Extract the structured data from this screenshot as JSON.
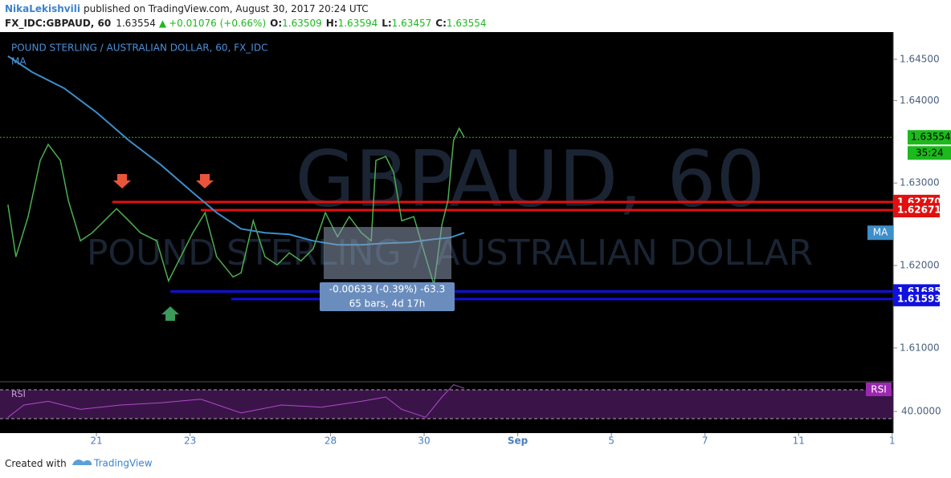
{
  "header": {
    "author": "NikaLekishvili",
    "published": "published on TradingView.com, August 30, 2017 20:24 UTC",
    "symbol": "FX_IDC:GBPAUD, 60",
    "last": "1.63554",
    "change": "+0.01076 (+0.66%)",
    "quote": [
      {
        "key": "O:",
        "value": "1.63509"
      },
      {
        "key": "H:",
        "value": "1.63594"
      },
      {
        "key": "L:",
        "value": "1.63457"
      },
      {
        "key": "C:",
        "value": "1.63554"
      }
    ]
  },
  "chart_data": {
    "type": "line",
    "title": "POUND STERLING / AUSTRALIAN DOLLAR, 60, FX_IDC",
    "watermark": "GBPAUD, 60",
    "watermark_subtitle": "POUND STERLING / AUSTRALIAN DOLLAR",
    "x": [
      -1.89,
      -1.72,
      -1.46,
      -1.2,
      -1.03,
      -0.77,
      -0.6,
      -0.34,
      -0.09,
      0.17,
      0.43,
      0.69,
      0.94,
      1.29,
      1.54,
      1.8,
      2.06,
      2.32,
      2.57,
      2.92,
      3.09,
      3.35,
      3.6,
      3.86,
      4.12,
      4.37,
      4.63,
      4.89,
      5.15,
      5.4,
      5.66,
      5.87,
      5.97,
      6.18,
      6.35,
      6.52,
      6.78,
      7.03,
      7.21,
      7.38,
      7.51,
      7.63,
      7.75,
      7.86
    ],
    "series": [
      {
        "color": "#4caf50",
        "values": [
          1.62738,
          1.62105,
          1.62592,
          1.63273,
          1.63468,
          1.63273,
          1.62786,
          1.62299,
          1.62397,
          1.62543,
          1.62689,
          1.62543,
          1.62397,
          1.62299,
          1.61813,
          1.62105,
          1.62397,
          1.6264,
          1.62105,
          1.61861,
          1.6191,
          1.62543,
          1.62105,
          1.62007,
          1.62153,
          1.62056,
          1.62202,
          1.6264,
          1.62348,
          1.62592,
          1.62397,
          1.62299,
          1.63273,
          1.63322,
          1.63127,
          1.62543,
          1.62592,
          1.62105,
          1.61764,
          1.62494,
          1.62786,
          1.63517,
          1.63663,
          1.63554
        ]
      }
    ],
    "ma": {
      "name": "MA",
      "color": "#3d8ec9",
      "x": [
        -1.89,
        -1.37,
        -0.69,
        0,
        0.69,
        1.37,
        2.06,
        2.57,
        3.09,
        3.6,
        4.12,
        4.63,
        5.15,
        5.66,
        6.18,
        6.69,
        7.21,
        7.55,
        7.86
      ],
      "values": [
        1.64539,
        1.64344,
        1.64149,
        1.63857,
        1.63517,
        1.63224,
        1.62884,
        1.6264,
        1.62445,
        1.62397,
        1.62377,
        1.62299,
        1.62251,
        1.62251,
        1.6227,
        1.6228,
        1.62319,
        1.62338,
        1.62397
      ]
    },
    "levels": [
      {
        "value": 1.6277,
        "label": "1.62770",
        "color": "#e01010",
        "start": 0.34
      },
      {
        "value": 1.62671,
        "label": "1.62671",
        "color": "#e01010",
        "start": 2.23
      },
      {
        "value": 1.61685,
        "label": "1.61685",
        "color": "#1010e0",
        "start": 1.58
      },
      {
        "value": 1.61593,
        "label": "1.61593",
        "color": "#1010e0",
        "start": 2.88
      }
    ],
    "current": {
      "value": 1.63554,
      "label": "1.63554",
      "countdown": "35:24",
      "color": "#1db91d"
    },
    "measure": {
      "line1": "-0.00633 (-0.39%) -63.3",
      "line2": "65 bars, 4d 17h"
    },
    "xlim": [
      -2.06,
      17.02
    ],
    "xticks": [
      {
        "value": 0,
        "label": "21"
      },
      {
        "value": 2,
        "label": "23"
      },
      {
        "value": 5,
        "label": "28"
      },
      {
        "value": 7,
        "label": "30"
      },
      {
        "value": 9,
        "label": "Sep"
      },
      {
        "value": 11,
        "label": "5"
      },
      {
        "value": 13,
        "label": "7"
      },
      {
        "value": 15,
        "label": "11"
      },
      {
        "value": 17,
        "label": "1"
      }
    ],
    "ylim": [
      1.606,
      1.6483
    ],
    "yticks": [
      {
        "value": 1.645,
        "label": "1.64500"
      },
      {
        "value": 1.64,
        "label": "1.64000"
      },
      {
        "value": 1.63,
        "label": "1.63000"
      },
      {
        "value": 1.62,
        "label": "1.62000"
      },
      {
        "value": 1.61,
        "label": "1.61000"
      }
    ],
    "rsi": {
      "label": "RSI",
      "color": "#b04ac8",
      "x": [
        -1.89,
        -1.55,
        -1.03,
        -0.34,
        0.51,
        1.37,
        2.23,
        3.09,
        3.95,
        4.8,
        5.66,
        6.18,
        6.52,
        7.03,
        7.38,
        7.63,
        7.86
      ],
      "values": [
        32,
        49,
        54,
        43,
        49,
        52,
        57,
        38,
        49,
        46,
        54,
        60,
        43,
        32,
        60,
        77,
        72
      ],
      "ylim": [
        19,
        80
      ],
      "yticks": [
        {
          "value": 40,
          "label": "40.0000"
        }
      ]
    }
  },
  "footer": {
    "created": "Created with",
    "brand": "TradingView"
  }
}
